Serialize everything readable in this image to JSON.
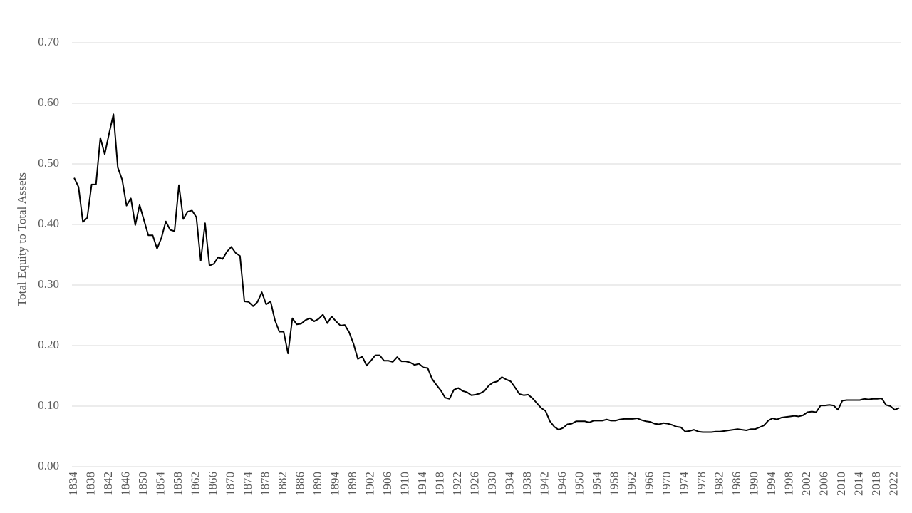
{
  "chart_data": {
    "type": "line",
    "y_label": "Total Equity to Total Assets",
    "color": "#000000",
    "grid": true,
    "ylim": [
      0,
      0.7
    ],
    "yticks": [
      {
        "value": 0,
        "label": "0.00"
      },
      {
        "value": 0.1,
        "label": "0.10"
      },
      {
        "value": 0.2,
        "label": "0.20"
      },
      {
        "value": 0.3,
        "label": "0.30"
      },
      {
        "value": 0.4,
        "label": "0.40"
      },
      {
        "value": 0.5,
        "label": "0.50"
      },
      {
        "value": 0.6,
        "label": "0.60"
      },
      {
        "value": 0.7,
        "label": "0.70"
      }
    ],
    "categories": [
      "1834",
      null,
      null,
      null,
      "1838",
      null,
      null,
      null,
      "1842",
      null,
      null,
      null,
      "1846",
      null,
      null,
      null,
      "1850",
      null,
      null,
      null,
      "1854",
      null,
      null,
      null,
      "1858",
      null,
      null,
      null,
      "1862",
      null,
      null,
      null,
      "1866",
      null,
      null,
      null,
      "1870",
      null,
      null,
      null,
      "1874",
      null,
      null,
      null,
      "1878",
      null,
      null,
      null,
      "1882",
      null,
      null,
      null,
      "1886",
      null,
      null,
      null,
      "1890",
      null,
      null,
      null,
      "1894",
      null,
      null,
      null,
      "1898",
      null,
      null,
      null,
      "1902",
      null,
      null,
      null,
      "1906",
      null,
      null,
      null,
      "1910",
      null,
      null,
      null,
      "1914",
      null,
      null,
      null,
      "1918",
      null,
      null,
      null,
      "1922",
      null,
      null,
      null,
      "1926",
      null,
      null,
      null,
      "1930",
      null,
      null,
      null,
      "1934",
      null,
      null,
      null,
      "1938",
      null,
      null,
      null,
      "1942",
      null,
      null,
      null,
      "1946",
      null,
      null,
      null,
      "1950",
      null,
      null,
      null,
      "1954",
      null,
      null,
      null,
      "1958",
      null,
      null,
      null,
      "1962",
      null,
      null,
      null,
      "1966",
      null,
      null,
      null,
      "1970",
      null,
      null,
      null,
      "1974",
      null,
      null,
      null,
      "1978",
      null,
      null,
      null,
      "1982",
      null,
      null,
      null,
      "1986",
      null,
      null,
      null,
      "1990",
      null,
      null,
      null,
      "1994",
      null,
      null,
      null,
      "1998",
      null,
      null,
      null,
      "2002",
      null,
      null,
      null,
      "2006",
      null,
      null,
      null,
      "2010",
      null,
      null,
      null,
      "2014",
      null,
      null,
      null,
      "2018",
      null,
      null,
      null,
      "2022",
      null
    ],
    "values": [
      0.477,
      0.462,
      0.404,
      0.411,
      0.466,
      0.466,
      0.543,
      0.516,
      0.55,
      0.582,
      0.494,
      0.474,
      0.431,
      0.443,
      0.399,
      0.432,
      0.407,
      0.382,
      0.382,
      0.36,
      0.378,
      0.405,
      0.391,
      0.389,
      0.465,
      0.409,
      0.421,
      0.423,
      0.412,
      0.34,
      0.402,
      0.332,
      0.335,
      0.346,
      0.343,
      0.355,
      0.363,
      0.353,
      0.348,
      0.273,
      0.272,
      0.265,
      0.272,
      0.288,
      0.268,
      0.273,
      0.242,
      0.223,
      0.223,
      0.187,
      0.245,
      0.235,
      0.236,
      0.242,
      0.245,
      0.24,
      0.244,
      0.251,
      0.237,
      0.248,
      0.24,
      0.233,
      0.234,
      0.222,
      0.203,
      0.178,
      0.182,
      0.167,
      0.175,
      0.184,
      0.184,
      0.175,
      0.175,
      0.173,
      0.181,
      0.174,
      0.174,
      0.172,
      0.168,
      0.17,
      0.164,
      0.163,
      0.145,
      0.135,
      0.126,
      0.114,
      0.112,
      0.127,
      0.13,
      0.125,
      0.123,
      0.118,
      0.119,
      0.121,
      0.125,
      0.134,
      0.139,
      0.141,
      0.148,
      0.144,
      0.141,
      0.131,
      0.12,
      0.118,
      0.119,
      0.113,
      0.105,
      0.097,
      0.092,
      0.075,
      0.066,
      0.061,
      0.064,
      0.07,
      0.071,
      0.075,
      0.075,
      0.075,
      0.073,
      0.076,
      0.076,
      0.076,
      0.078,
      0.076,
      0.076,
      0.078,
      0.079,
      0.079,
      0.079,
      0.08,
      0.077,
      0.075,
      0.074,
      0.071,
      0.07,
      0.072,
      0.071,
      0.069,
      0.066,
      0.065,
      0.058,
      0.059,
      0.061,
      0.058,
      0.057,
      0.057,
      0.057,
      0.058,
      0.058,
      0.059,
      0.06,
      0.061,
      0.062,
      0.061,
      0.06,
      0.062,
      0.062,
      0.065,
      0.068,
      0.076,
      0.08,
      0.078,
      0.081,
      0.082,
      0.083,
      0.084,
      0.083,
      0.085,
      0.09,
      0.091,
      0.09,
      0.101,
      0.101,
      0.102,
      0.101,
      0.094,
      0.109,
      0.11,
      0.11,
      0.11,
      0.11,
      0.112,
      0.111,
      0.112,
      0.112,
      0.113,
      0.102,
      0.1,
      0.094,
      0.097
    ]
  }
}
